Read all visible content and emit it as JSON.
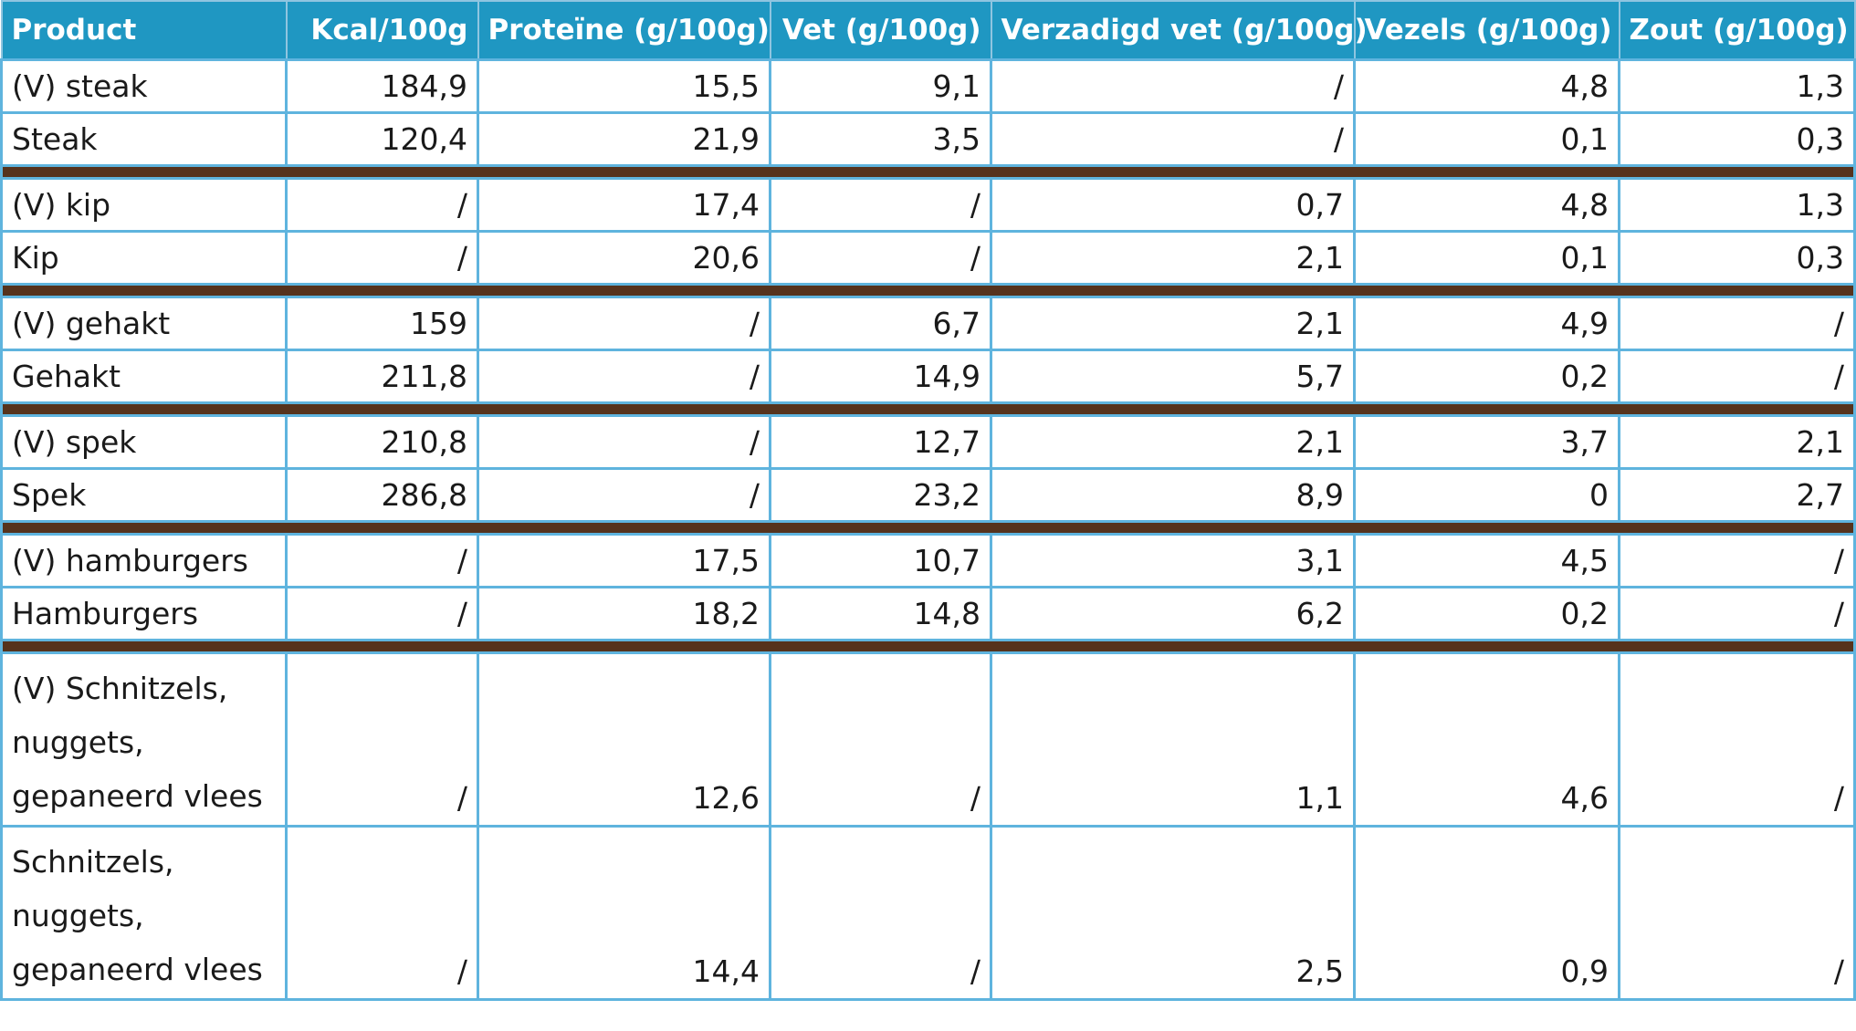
{
  "table": {
    "headers": [
      "Product",
      "Kcal/100g",
      "Proteïne (g/100g)",
      "Vet (g/100g)",
      "Verzadigd vet (g/100g)",
      "Vezels (g/100g)",
      "Zout (g/100g)"
    ],
    "groups": [
      {
        "rows": [
          [
            "(V) steak",
            "184,9",
            "15,5",
            "9,1",
            "/",
            "4,8",
            "1,3"
          ],
          [
            "Steak",
            "120,4",
            "21,9",
            "3,5",
            "/",
            "0,1",
            "0,3"
          ]
        ]
      },
      {
        "rows": [
          [
            "(V) kip",
            "/",
            "17,4",
            "/",
            "0,7",
            "4,8",
            "1,3"
          ],
          [
            "Kip",
            "/",
            "20,6",
            "/",
            "2,1",
            "0,1",
            "0,3"
          ]
        ]
      },
      {
        "rows": [
          [
            "(V) gehakt",
            "159",
            "/",
            "6,7",
            "2,1",
            "4,9",
            "/"
          ],
          [
            "Gehakt",
            "211,8",
            "/",
            "14,9",
            "5,7",
            "0,2",
            "/"
          ]
        ]
      },
      {
        "rows": [
          [
            "(V) spek",
            "210,8",
            "/",
            "12,7",
            "2,1",
            "3,7",
            "2,1"
          ],
          [
            "Spek",
            "286,8",
            "/",
            "23,2",
            "8,9",
            "0",
            "2,7"
          ]
        ]
      },
      {
        "rows": [
          [
            "(V) hamburgers",
            "/",
            "17,5",
            "10,7",
            "3,1",
            "4,5",
            "/"
          ],
          [
            "Hamburgers",
            "/",
            "18,2",
            "14,8",
            "6,2",
            "0,2",
            "/"
          ]
        ]
      },
      {
        "rows": [
          [
            "(V) Schnitzels, nuggets, gepaneerd vlees",
            "/",
            "12,6",
            "/",
            "1,1",
            "4,6",
            "/"
          ],
          [
            "Schnitzels, nuggets, gepaneerd vlees",
            "/",
            "14,4",
            "/",
            "2,5",
            "0,9",
            "/"
          ]
        ]
      }
    ]
  },
  "colors": {
    "header_background": "#1f97c2",
    "header_text": "#ffffff",
    "grid_line": "#5fb4de",
    "separator_bar": "#56331d"
  }
}
